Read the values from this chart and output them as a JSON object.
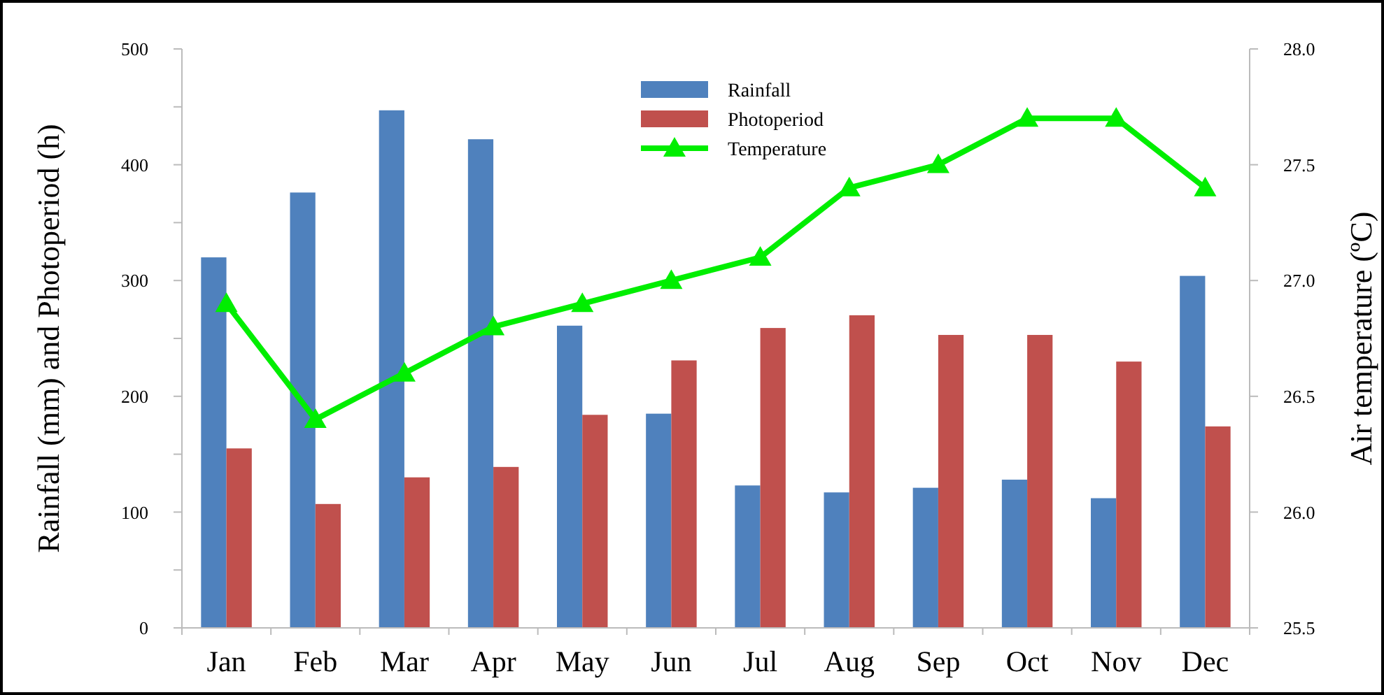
{
  "chart_data": {
    "type": "bar",
    "ylabel": "Rainfall (mm) and Photoperiod (h)",
    "y2label": "Air temperature (ºC)",
    "categories": [
      "Jan",
      "Feb",
      "Mar",
      "Apr",
      "May",
      "Jun",
      "Jul",
      "Aug",
      "Sep",
      "Oct",
      "Nov",
      "Dec"
    ],
    "series": [
      {
        "name": "Rainfall",
        "color": "#4f81bd",
        "values": [
          320,
          376,
          447,
          422,
          261,
          185,
          123,
          117,
          121,
          128,
          112,
          304
        ]
      },
      {
        "name": "Photoperiod",
        "color": "#c0504d",
        "values": [
          155,
          107,
          130,
          139,
          184,
          231,
          259,
          270,
          253,
          253,
          230,
          174
        ]
      },
      {
        "name": "Temperature",
        "type": "line",
        "axis": "y2",
        "color": "#00ee00",
        "marker": "triangle",
        "values": [
          26.9,
          26.4,
          26.6,
          26.8,
          26.9,
          27.0,
          27.1,
          27.4,
          27.5,
          27.7,
          27.7,
          27.4
        ]
      }
    ],
    "ylim": [
      0,
      500
    ],
    "yticks": [
      0,
      {
        "value": 50,
        "label": null
      },
      100,
      {
        "value": 150,
        "label": null
      },
      200,
      {
        "value": 250,
        "label": null
      },
      300,
      {
        "value": 350,
        "label": null
      },
      400,
      {
        "value": 450,
        "label": null
      },
      500
    ],
    "y2lim": [
      25.5,
      28.0
    ],
    "y2ticks": [
      25.5,
      {
        "value": 26.0,
        "label": "26.0"
      },
      26.5,
      {
        "value": 27.0,
        "label": "27.0"
      },
      27.5,
      {
        "value": 28.0,
        "label": "28.0"
      }
    ],
    "legend": "top"
  }
}
